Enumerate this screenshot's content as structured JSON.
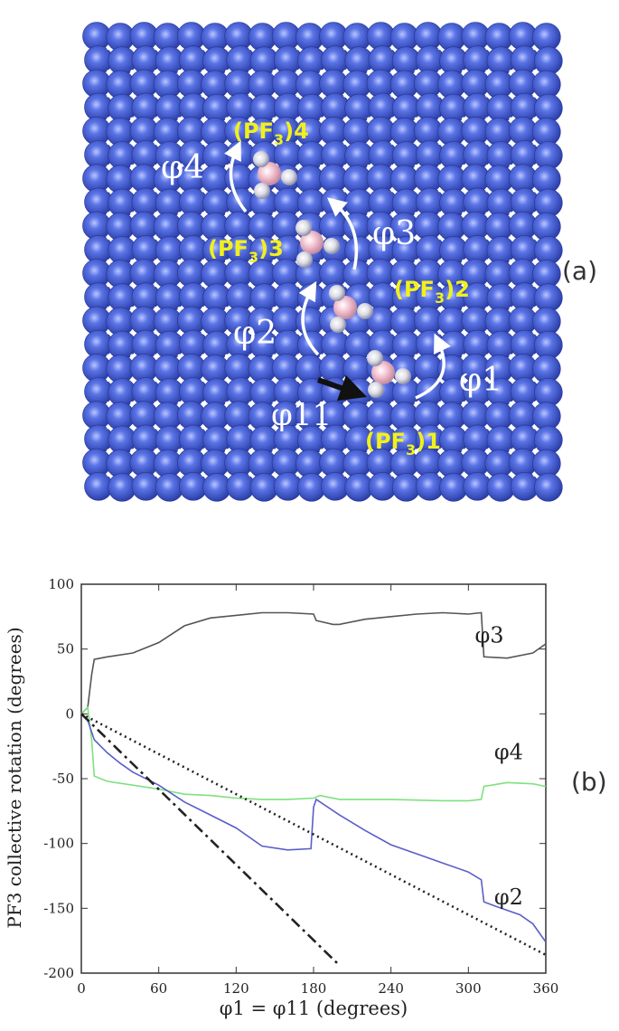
{
  "figure": {
    "panel_a_tag": "(a)",
    "panel_b_tag": "(b)"
  },
  "panel_a": {
    "molecules": [
      {
        "label": "(PF3)4",
        "base": "(PF",
        "sub": "3",
        "tail": ")4"
      },
      {
        "label": "(PF3)3",
        "base": "(PF",
        "sub": "3",
        "tail": ")3"
      },
      {
        "label": "(PF3)2",
        "base": "(PF",
        "sub": "3",
        "tail": ")2"
      },
      {
        "label": "(PF3)1",
        "base": "(PF",
        "sub": "3",
        "tail": ")1"
      }
    ],
    "angles": [
      "φ4",
      "φ3",
      "φ2",
      "φ1",
      "φ11"
    ],
    "colors": {
      "surface": "#4a63d8",
      "phosphorus": "#f2c0cf",
      "fluorine": "#e8e8f0",
      "labels": "#f2f01c"
    }
  },
  "chart_data": {
    "type": "line",
    "xlabel": "φ1 = φ11 (degrees)",
    "ylabel": "PF3 collective rotation  (degrees)",
    "xlim": [
      0,
      360
    ],
    "ylim": [
      -200,
      100
    ],
    "xticks": [
      0,
      60,
      120,
      180,
      240,
      300,
      360
    ],
    "yticks": [
      100,
      50,
      0,
      -50,
      -100,
      -150,
      -200
    ],
    "series": [
      {
        "name": "φ3",
        "color": "#555555",
        "x": [
          0,
          5,
          8,
          10,
          20,
          40,
          60,
          80,
          100,
          120,
          140,
          160,
          180,
          182,
          195,
          200,
          220,
          240,
          260,
          280,
          300,
          310,
          312,
          330,
          350,
          360
        ],
        "y": [
          0,
          5,
          30,
          42,
          44,
          47,
          55,
          68,
          74,
          76,
          78,
          78,
          77,
          72,
          69,
          69,
          73,
          75,
          77,
          78,
          77,
          78,
          44,
          43,
          47,
          54
        ]
      },
      {
        "name": "φ4",
        "color": "#7fe07f",
        "x": [
          0,
          5,
          8,
          10,
          20,
          40,
          60,
          80,
          100,
          120,
          140,
          160,
          180,
          185,
          200,
          240,
          280,
          300,
          310,
          312,
          330,
          350,
          360
        ],
        "y": [
          0,
          5,
          -20,
          -48,
          -52,
          -55,
          -58,
          -62,
          -63,
          -65,
          -66,
          -66,
          -65,
          -63,
          -66,
          -66,
          -67,
          -67,
          -66,
          -56,
          -53,
          -54,
          -56
        ]
      },
      {
        "name": "φ2",
        "color": "#5a5ec8",
        "x": [
          0,
          5,
          10,
          20,
          30,
          40,
          60,
          80,
          100,
          120,
          140,
          160,
          178,
          180,
          182,
          200,
          220,
          240,
          260,
          280,
          300,
          310,
          312,
          320,
          340,
          350,
          360
        ],
        "y": [
          0,
          -5,
          -20,
          -30,
          -38,
          -45,
          -55,
          -68,
          -78,
          -88,
          -102,
          -105,
          -104,
          -72,
          -66,
          -78,
          -90,
          -101,
          -108,
          -115,
          -122,
          -128,
          -145,
          -148,
          -155,
          -162,
          -176
        ]
      },
      {
        "name": "",
        "color": "#222222",
        "dash": "dotted",
        "x": [
          0,
          360
        ],
        "y": [
          0,
          -186
        ]
      },
      {
        "name": "",
        "color": "#222222",
        "dash": "dashdot",
        "x": [
          0,
          200
        ],
        "y": [
          0,
          -194
        ]
      }
    ],
    "annotations": [
      {
        "text": "φ3",
        "x": 305,
        "y": 55
      },
      {
        "text": "φ4",
        "x": 320,
        "y": -35
      },
      {
        "text": "φ2",
        "x": 320,
        "y": -147
      }
    ]
  }
}
